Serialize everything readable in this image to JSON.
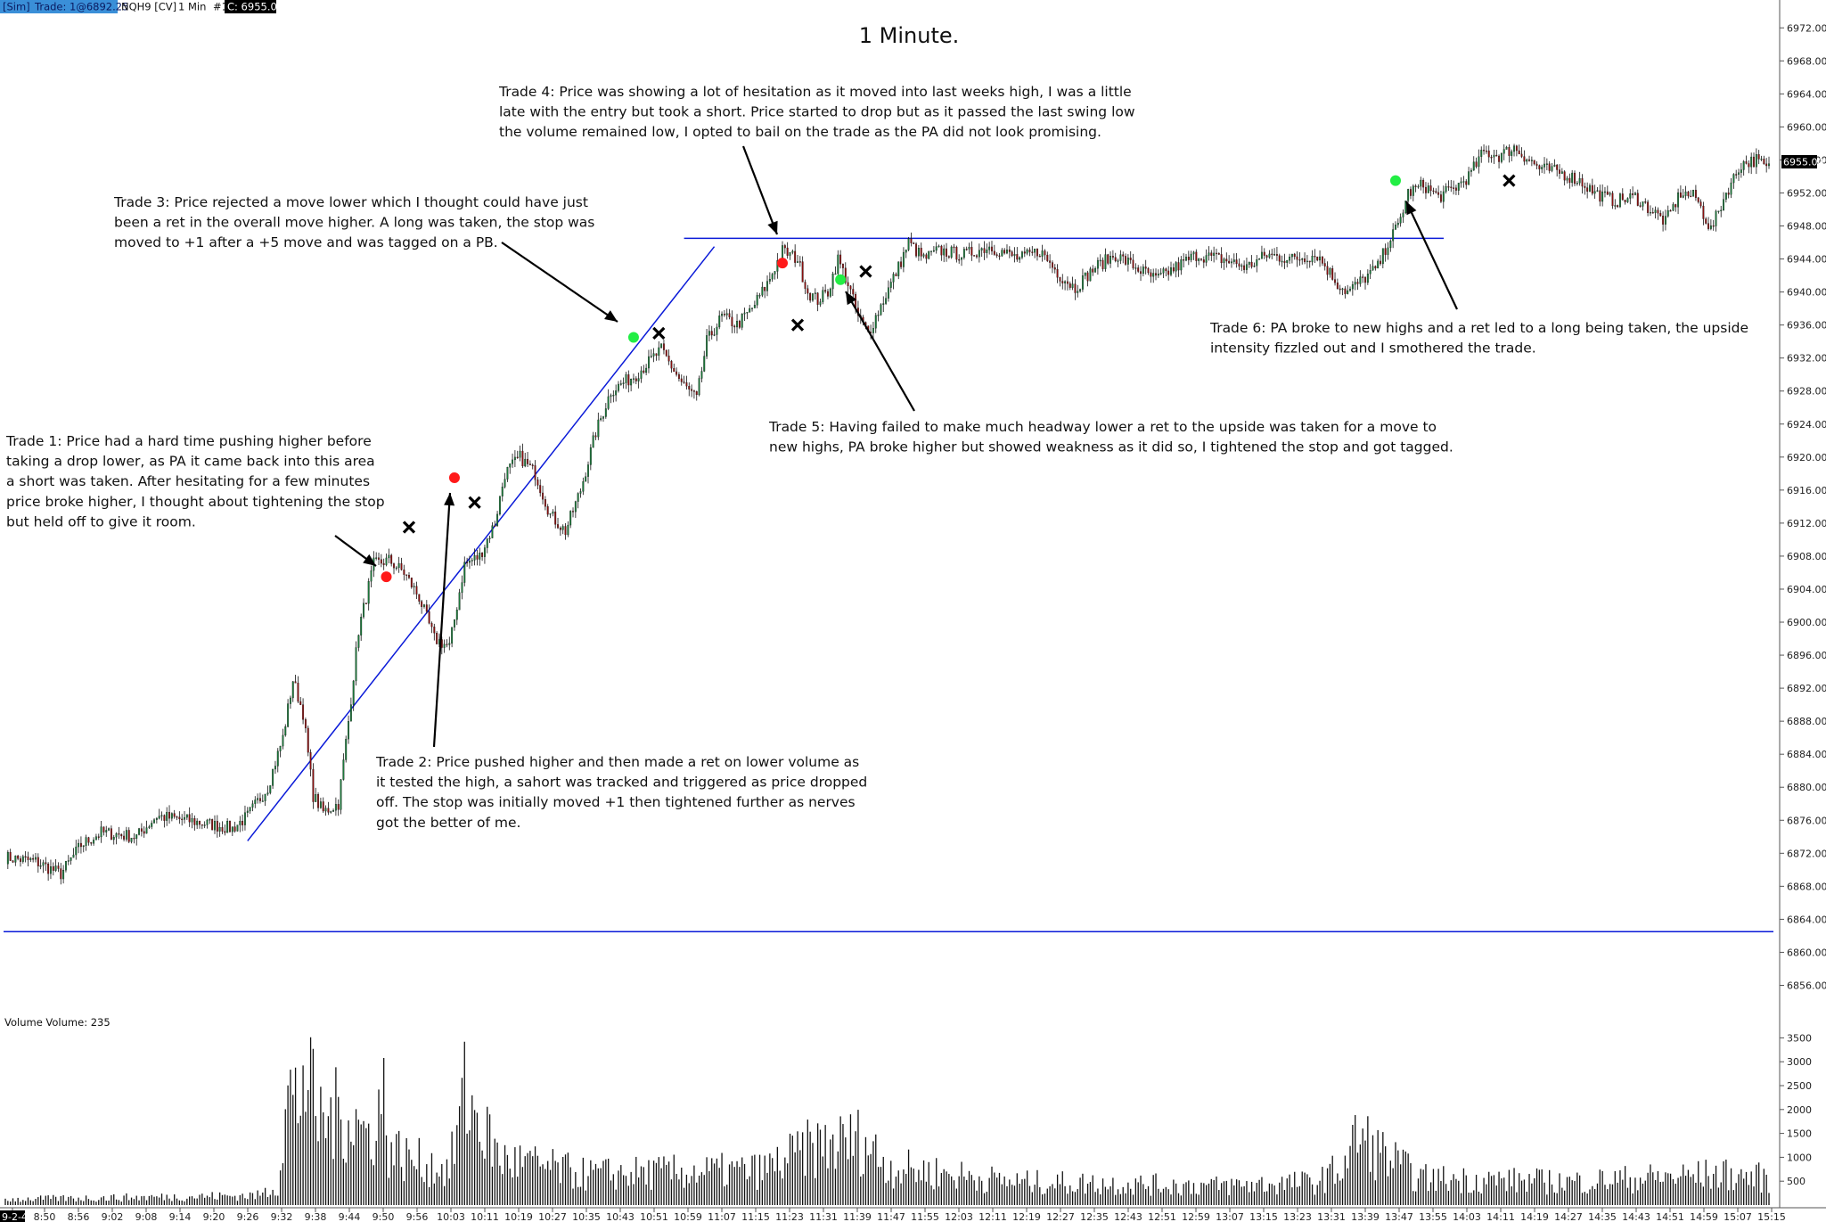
{
  "header": {
    "sim_tag": "[Sim]",
    "trade_tag": "Trade: 1@6892.25",
    "instrument": "NQH9 [CV]",
    "interval": "1 Min",
    "chart_index": "#1",
    "close_tag": "C: 6955.00"
  },
  "title": "1 Minute.",
  "last_price": "6955.00",
  "colors": {
    "up_candle": "#1a7a3a",
    "down_candle": "#8b0f0f",
    "wick": "#111111",
    "trend_line": "#0a1ad8",
    "marker_short": "#ff1a1a",
    "marker_long": "#22ee44",
    "exit_marker": "#000000",
    "header_sim_bg": "#3a8fd8",
    "header_close_bg": "#000000"
  },
  "chart_data": [
    {
      "type": "candlestick",
      "title": "1 Minute.",
      "instrument": "NQH9 [CV]",
      "y_ticks": [
        "6972.00",
        "6968.00",
        "6964.00",
        "6960.00",
        "6956.00",
        "6952.00",
        "6948.00",
        "6944.00",
        "6940.00",
        "6936.00",
        "6932.00",
        "6928.00",
        "6924.00",
        "6920.00",
        "6916.00",
        "6912.00",
        "6908.00",
        "6904.00",
        "6900.00",
        "6896.00",
        "6892.00",
        "6888.00",
        "6884.00",
        "6880.00",
        "6876.00",
        "6872.00",
        "6868.00",
        "6864.00",
        "6860.00",
        "6856.00"
      ],
      "ylim": [
        6854,
        6973
      ],
      "x_ticks": [
        "9-2-4",
        "8:50",
        "8:56",
        "9:02",
        "9:08",
        "9:14",
        "9:20",
        "9:26",
        "9:32",
        "9:38",
        "9:44",
        "9:50",
        "9:56",
        "10:03",
        "10:11",
        "10:19",
        "10:27",
        "10:35",
        "10:43",
        "10:51",
        "10:59",
        "11:07",
        "11:15",
        "11:23",
        "11:31",
        "11:39",
        "11:47",
        "11:55",
        "12:03",
        "12:11",
        "12:19",
        "12:27",
        "12:35",
        "12:43",
        "12:51",
        "12:59",
        "13:07",
        "13:15",
        "13:23",
        "13:31",
        "13:39",
        "13:47",
        "13:55",
        "14:03",
        "14:11",
        "14:19",
        "14:27",
        "14:35",
        "14:43",
        "14:51",
        "14:59",
        "15:07",
        "15:15"
      ],
      "price_path": [
        [
          0,
          6871.5
        ],
        [
          12,
          6871
        ],
        [
          22,
          6869.5
        ],
        [
          30,
          6873
        ],
        [
          38,
          6874.5
        ],
        [
          52,
          6874
        ],
        [
          60,
          6876.5
        ],
        [
          72,
          6876
        ],
        [
          90,
          6875
        ],
        [
          96,
          6876.5
        ],
        [
          104,
          6880
        ],
        [
          110,
          6886
        ],
        [
          114,
          6893
        ],
        [
          118,
          6889
        ],
        [
          122,
          6879
        ],
        [
          126,
          6877
        ],
        [
          132,
          6878
        ],
        [
          136,
          6888
        ],
        [
          140,
          6899
        ],
        [
          146,
          6907
        ],
        [
          152,
          6907.5
        ],
        [
          158,
          6906
        ],
        [
          164,
          6903
        ],
        [
          170,
          6898
        ],
        [
          176,
          6897
        ],
        [
          182,
          6907
        ],
        [
          188,
          6908
        ],
        [
          194,
          6912
        ],
        [
          198,
          6918
        ],
        [
          204,
          6920
        ],
        [
          210,
          6918
        ],
        [
          216,
          6913
        ],
        [
          222,
          6911
        ],
        [
          228,
          6916
        ],
        [
          234,
          6923
        ],
        [
          240,
          6928
        ],
        [
          250,
          6930
        ],
        [
          260,
          6933
        ],
        [
          268,
          6929
        ],
        [
          274,
          6927
        ],
        [
          278,
          6934
        ],
        [
          284,
          6937
        ],
        [
          290,
          6936
        ],
        [
          296,
          6938
        ],
        [
          302,
          6941
        ],
        [
          308,
          6945
        ],
        [
          314,
          6944
        ],
        [
          318,
          6940
        ],
        [
          322,
          6939
        ],
        [
          326,
          6940
        ],
        [
          330,
          6944
        ],
        [
          334,
          6941
        ],
        [
          338,
          6937
        ],
        [
          342,
          6935
        ],
        [
          348,
          6939
        ],
        [
          354,
          6943
        ],
        [
          358,
          6946
        ],
        [
          364,
          6944
        ],
        [
          370,
          6945
        ],
        [
          380,
          6944.5
        ],
        [
          390,
          6945.5
        ],
        [
          402,
          6944
        ],
        [
          410,
          6945
        ],
        [
          418,
          6942
        ],
        [
          424,
          6940.5
        ],
        [
          432,
          6943
        ],
        [
          440,
          6944.5
        ],
        [
          448,
          6943
        ],
        [
          456,
          6941.5
        ],
        [
          464,
          6943
        ],
        [
          472,
          6944.5
        ],
        [
          482,
          6944
        ],
        [
          492,
          6943
        ],
        [
          500,
          6944.5
        ],
        [
          510,
          6944
        ],
        [
          520,
          6944.5
        ],
        [
          528,
          6941
        ],
        [
          532,
          6940
        ],
        [
          538,
          6941.5
        ],
        [
          544,
          6943
        ],
        [
          548,
          6946
        ],
        [
          552,
          6948
        ],
        [
          556,
          6952
        ],
        [
          562,
          6953
        ],
        [
          568,
          6951.5
        ],
        [
          574,
          6952.5
        ],
        [
          580,
          6954
        ],
        [
          586,
          6957
        ],
        [
          592,
          6956.5
        ],
        [
          598,
          6957.5
        ],
        [
          604,
          6956
        ],
        [
          608,
          6955
        ],
        [
          616,
          6954.5
        ],
        [
          624,
          6953.5
        ],
        [
          630,
          6952
        ],
        [
          638,
          6951
        ],
        [
          646,
          6951.5
        ],
        [
          652,
          6950
        ],
        [
          658,
          6948.5
        ],
        [
          664,
          6952
        ],
        [
          670,
          6951.5
        ],
        [
          676,
          6947.5
        ],
        [
          682,
          6952
        ],
        [
          688,
          6955.5
        ],
        [
          694,
          6956
        ],
        [
          698,
          6955
        ]
      ],
      "volume_path": [
        [
          0,
          150
        ],
        [
          100,
          250
        ],
        [
          108,
          500
        ],
        [
          112,
          2900
        ],
        [
          116,
          2600
        ],
        [
          118,
          3600
        ],
        [
          124,
          2200
        ],
        [
          136,
          2400
        ],
        [
          144,
          1800
        ],
        [
          150,
          2800
        ],
        [
          152,
          1500
        ],
        [
          160,
          1200
        ],
        [
          176,
          900
        ],
        [
          182,
          2900
        ],
        [
          196,
          1200
        ],
        [
          230,
          800
        ],
        [
          300,
          900
        ],
        [
          320,
          1500
        ],
        [
          340,
          1700
        ],
        [
          350,
          1000
        ],
        [
          400,
          600
        ],
        [
          480,
          500
        ],
        [
          520,
          600
        ],
        [
          530,
          1000
        ],
        [
          536,
          1800
        ],
        [
          540,
          1600
        ],
        [
          560,
          700
        ],
        [
          620,
          600
        ],
        [
          680,
          800
        ],
        [
          698,
          700
        ]
      ],
      "volume_ticks": [
        "3500",
        "3000",
        "2500",
        "2000",
        "1500",
        "1000",
        "500"
      ],
      "volume_label": "Volume  Volume: 235",
      "horizontal_lines": [
        6946.5,
        6862.5
      ],
      "entries": [
        {
          "trade": 1,
          "side": "short",
          "bar": 151,
          "price": 6905.5
        },
        {
          "trade": 2,
          "side": "short",
          "bar": 178,
          "price": 6917.5
        },
        {
          "trade": 3,
          "side": "long",
          "bar": 249,
          "price": 6934.5
        },
        {
          "trade": 4,
          "side": "short",
          "bar": 308,
          "price": 6943.5
        },
        {
          "trade": 5,
          "side": "long",
          "bar": 331,
          "price": 6941.5
        },
        {
          "trade": 6,
          "side": "long",
          "bar": 551,
          "price": 6953.5
        }
      ],
      "exits": [
        {
          "bar": 160,
          "price": 6911.5
        },
        {
          "bar": 186,
          "price": 6914.5
        },
        {
          "bar": 259,
          "price": 6935
        },
        {
          "bar": 314,
          "price": 6936
        },
        {
          "bar": 341,
          "price": 6942.5
        },
        {
          "bar": 596,
          "price": 6953.5
        }
      ],
      "annotations": [
        {
          "label": "Trade 1",
          "lines": [
            "Trade 1:  Price had a hard time pushing higher before",
            "taking a drop lower, as PA it came back into this area",
            "a short was taken.  After hesitating for a few minutes",
            "price broke higher, I thought about tightening the stop",
            "but held off to give it room."
          ]
        },
        {
          "label": "Trade 2",
          "lines": [
            "Trade 2:  Price pushed higher and then made a ret on lower volume as",
            "it tested the high, a sahort was tracked and triggered as price dropped",
            "off.  The stop was initially moved +1 then tightened further as nerves",
            "got the better of me."
          ]
        },
        {
          "label": "Trade 3",
          "lines": [
            "Trade 3:  Price rejected a move lower which I thought could have just",
            "been a ret in the overall move higher.  A long was taken, the stop was",
            "moved to +1 after a +5 move and was tagged on a PB."
          ]
        },
        {
          "label": "Trade 4",
          "lines": [
            "Trade 4:  Price was showing a lot of hesitation as it moved into last weeks high, I was a little",
            "late with the entry but took a short.  Price started to drop but as it passed the last swing low",
            "the volume remained low, I opted to bail on the trade as the PA did not look promising."
          ]
        },
        {
          "label": "Trade 5",
          "lines": [
            "Trade 5:  Having failed to make much headway lower a ret to the upside was taken for a move to",
            "new highs, PA broke higher but showed weakness as it did so, I tightened the stop and got tagged."
          ]
        },
        {
          "label": "Trade 6",
          "lines": [
            "Trade 6:  PA broke to new highs and a ret led to a long being taken, the upside",
            "intensity fizzled out and I smothered the trade."
          ]
        }
      ]
    }
  ]
}
